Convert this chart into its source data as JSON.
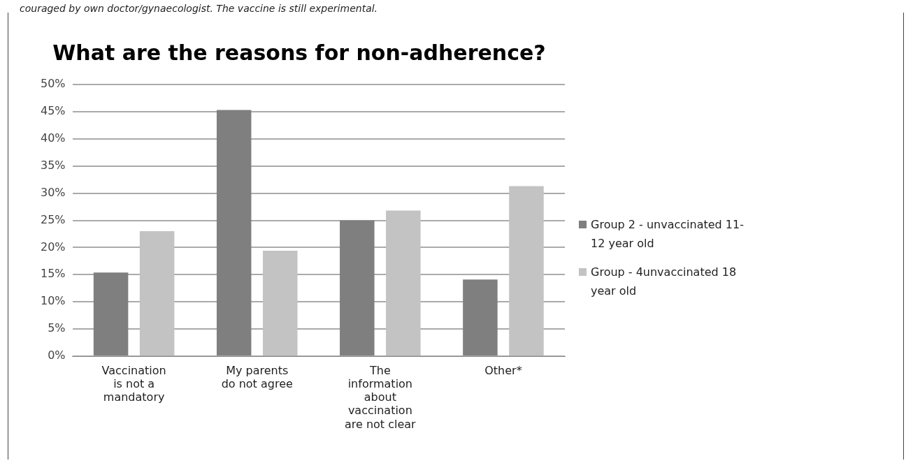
{
  "chart_data": {
    "type": "bar",
    "title": "What are the reasons for non-adherence?",
    "annotations": [
      "couraged by own doctor/gynaecologist. The vaccine is still experimental."
    ],
    "categories": [
      "Vaccination is not a mandatory",
      "My parents do not agree",
      "The information about vaccination are not clear",
      "Other*"
    ],
    "series": [
      {
        "name": "Group 2 - unvaccinated 11-12 year old",
        "color": "#7f7f7f",
        "values": [
          15.4,
          45.3,
          25.0,
          14.1
        ]
      },
      {
        "name": "Group - 4unvaccinated 18 year old",
        "color": "#c3c3c3",
        "values": [
          23.0,
          19.4,
          26.8,
          31.3
        ]
      }
    ],
    "ylim": [
      0,
      50
    ],
    "yticks": [
      {
        "value": 0,
        "label": "0%"
      },
      {
        "value": 5,
        "label": "5%"
      },
      {
        "value": 10,
        "label": "10%"
      },
      {
        "value": 15,
        "label": "15%"
      },
      {
        "value": 20,
        "label": "20%"
      },
      {
        "value": 25,
        "label": "25%"
      },
      {
        "value": 30,
        "label": "30%"
      },
      {
        "value": 35,
        "label": "35%"
      },
      {
        "value": 40,
        "label": "40%"
      },
      {
        "value": 45,
        "label": "45%"
      },
      {
        "value": 50,
        "label": "50%"
      }
    ],
    "grid": "y",
    "legend": "right"
  }
}
